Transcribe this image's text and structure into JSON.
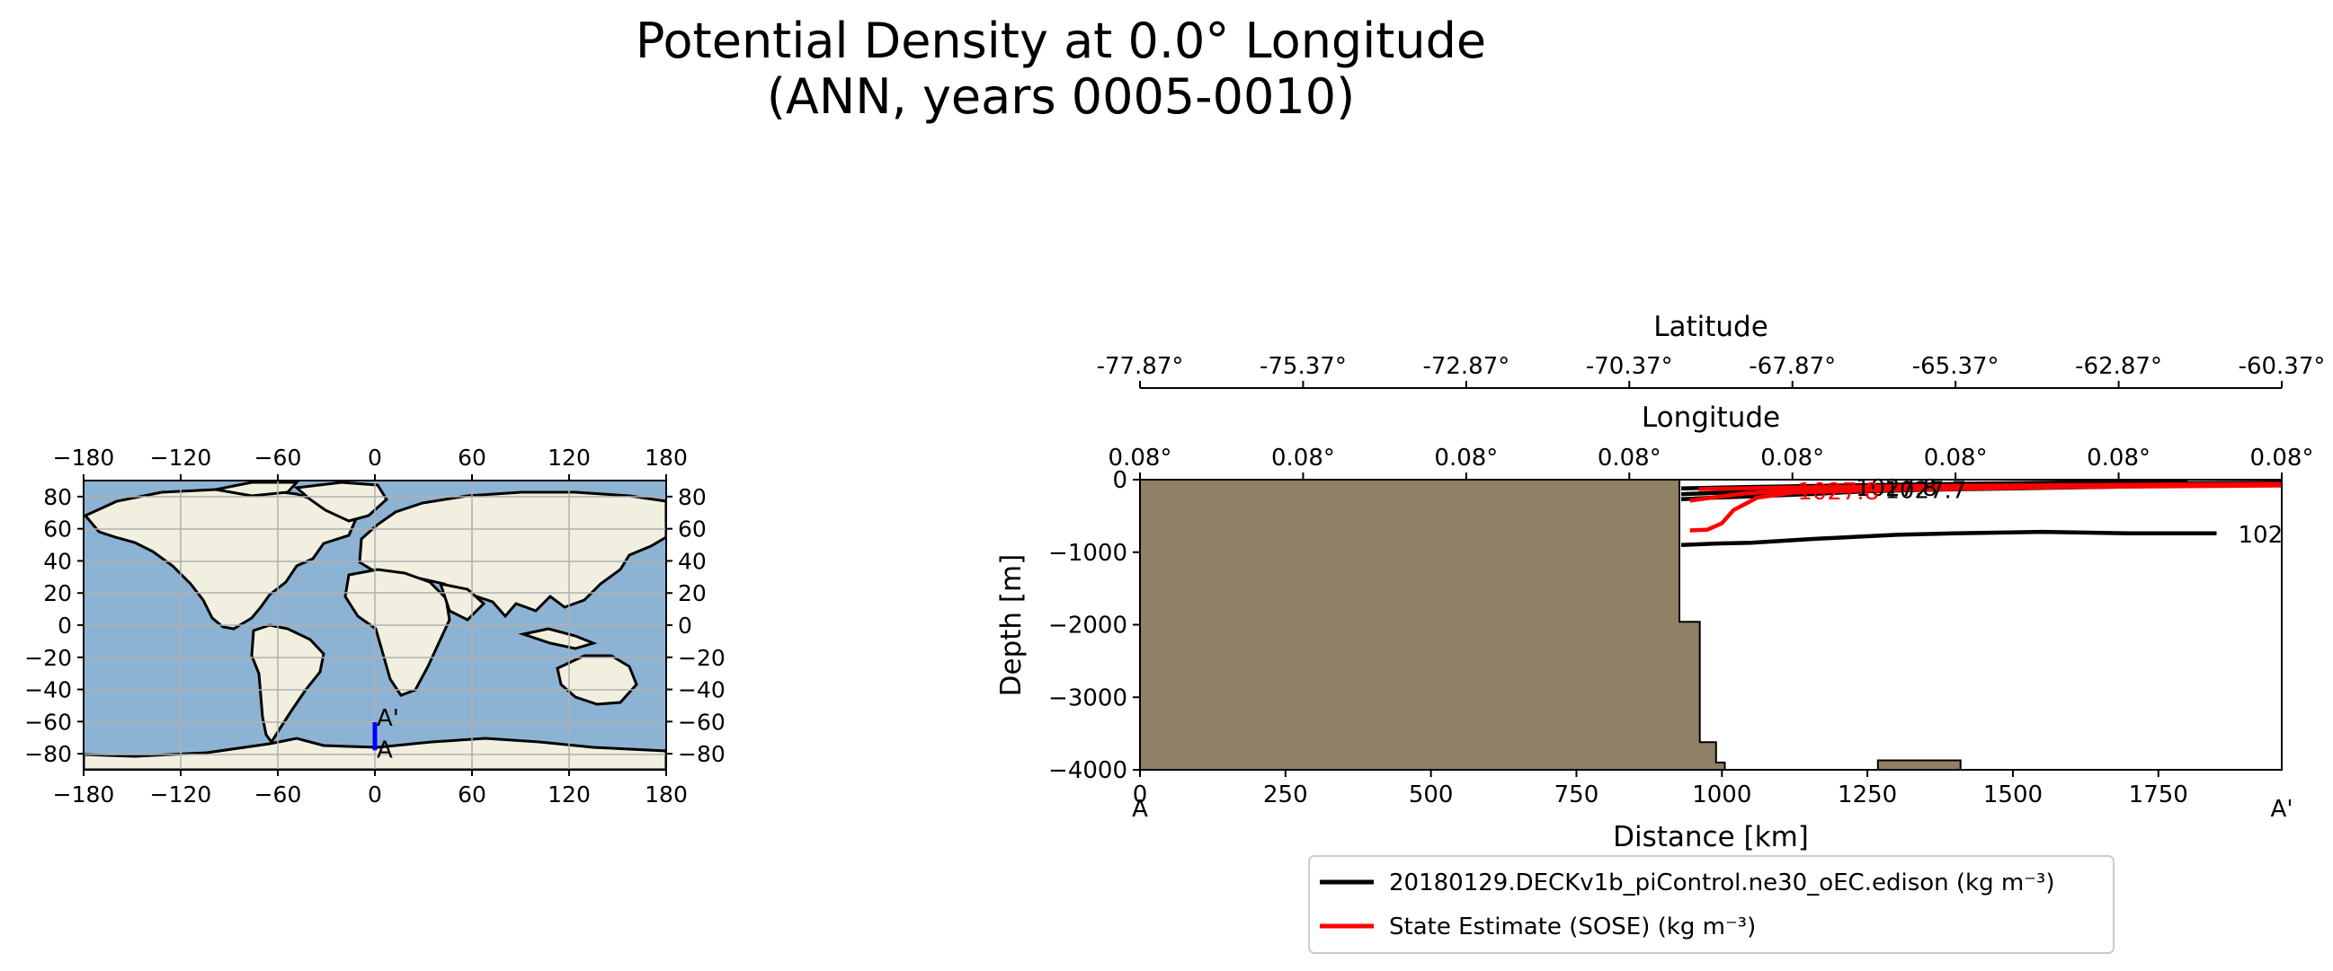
{
  "figure": {
    "title_line1": "Potential Density at 0.0° Longitude",
    "title_line2": "(ANN, years 0005-0010)"
  },
  "map": {
    "lon_ticks": [
      "−180",
      "−120",
      "−60",
      "0",
      "60",
      "120",
      "180"
    ],
    "lat_ticks_left": [
      "80",
      "60",
      "40",
      "20",
      "0",
      "−20",
      "−40",
      "−60",
      "−80"
    ],
    "lat_ticks_right": [
      "80",
      "60",
      "40",
      "20",
      "0",
      "−20",
      "−40",
      "−60",
      "−80"
    ],
    "section_line": {
      "lon": 0,
      "lat_start": -77.87,
      "lat_end": -60.37,
      "color": "#0000ff"
    },
    "start_label": "A",
    "end_label": "A'",
    "ocean_color": "#8db3d4",
    "land_color": "#f1efdf"
  },
  "chart_data": {
    "type": "line",
    "xlabel": "Distance [km]",
    "ylabel": "Depth [m]",
    "xlim": [
      0,
      1962
    ],
    "ylim": [
      -4000,
      0
    ],
    "x_ticks": [
      0,
      250,
      500,
      750,
      1000,
      1250,
      1500,
      1750
    ],
    "y_ticks": [
      0,
      -1000,
      -2000,
      -3000,
      -4000
    ],
    "x_tick_labels": [
      "0",
      "250",
      "500",
      "750",
      "1000",
      "1250",
      "1500",
      "1750"
    ],
    "y_tick_labels": [
      "0",
      "−1000",
      "−2000",
      "−3000",
      "−4000"
    ],
    "section_start_label": "A",
    "section_end_label": "A'",
    "latitude_axis": {
      "label": "Latitude",
      "ticks": [
        "-77.87°",
        "-75.37°",
        "-72.87°",
        "-70.37°",
        "-67.87°",
        "-65.37°",
        "-62.87°",
        "-60.37°"
      ]
    },
    "longitude_axis": {
      "label": "Longitude",
      "ticks": [
        "0.08°",
        "0.08°",
        "0.08°",
        "0.08°",
        "0.08°",
        "0.08°",
        "0.08°",
        "0.08°"
      ]
    },
    "land_color": "#8f8066",
    "bathymetry": [
      {
        "x": 0,
        "y": 0
      },
      {
        "x": 927,
        "y": 0
      },
      {
        "x": 927,
        "y": -1960
      },
      {
        "x": 962,
        "y": -1960
      },
      {
        "x": 962,
        "y": -3620
      },
      {
        "x": 990,
        "y": -3620
      },
      {
        "x": 990,
        "y": -3900
      },
      {
        "x": 1005,
        "y": -3900
      },
      {
        "x": 1005,
        "y": -4000
      },
      {
        "x": 0,
        "y": -4000
      }
    ],
    "seamount": [
      {
        "x": 1268,
        "y": -4000
      },
      {
        "x": 1268,
        "y": -3870
      },
      {
        "x": 1410,
        "y": -3870
      },
      {
        "x": 1410,
        "y": -4000
      }
    ],
    "series": [
      {
        "name": "20180129.DECKv1b_piControl.ne30_oEC.edison (kg m⁻³)",
        "color": "#000000",
        "lines": [
          {
            "label": "102",
            "points": [
              [
                930,
                -900
              ],
              [
                990,
                -880
              ],
              [
                1050,
                -870
              ],
              [
                1150,
                -820
              ],
              [
                1300,
                -760
              ],
              [
                1400,
                -740
              ],
              [
                1550,
                -720
              ],
              [
                1700,
                -740
              ],
              [
                1850,
                -740
              ]
            ]
          },
          {
            "label": "1027.7",
            "points": [
              [
                930,
                -270
              ],
              [
                980,
                -250
              ],
              [
                1050,
                -230
              ],
              [
                1150,
                -200
              ],
              [
                1250,
                -160
              ],
              [
                1350,
                -140
              ],
              [
                1500,
                -120
              ],
              [
                1650,
                -100
              ],
              [
                1800,
                -80
              ],
              [
                1962,
                -70
              ]
            ]
          },
          {
            "label": "1027.8",
            "points": [
              [
                930,
                -200
              ],
              [
                1000,
                -180
              ],
              [
                1100,
                -150
              ],
              [
                1200,
                -130
              ],
              [
                1300,
                -110
              ],
              [
                1450,
                -90
              ],
              [
                1600,
                -70
              ],
              [
                1780,
                -50
              ],
              [
                1962,
                -40
              ]
            ]
          },
          {
            "label": "",
            "points": [
              [
                930,
                -120
              ],
              [
                1050,
                -100
              ],
              [
                1200,
                -80
              ],
              [
                1400,
                -60
              ],
              [
                1600,
                -40
              ],
              [
                1800,
                -30
              ]
            ]
          }
        ]
      },
      {
        "name": "State Estimate (SOSE) (kg m⁻³)",
        "color": "#ff0000",
        "lines": [
          {
            "label": "1027.8",
            "points": [
              [
                945,
                -700
              ],
              [
                975,
                -690
              ],
              [
                1000,
                -600
              ],
              [
                1020,
                -420
              ],
              [
                1060,
                -250
              ],
              [
                1120,
                -180
              ],
              [
                1200,
                -160
              ],
              [
                1300,
                -140
              ],
              [
                1450,
                -120
              ],
              [
                1600,
                -100
              ],
              [
                1800,
                -90
              ],
              [
                1962,
                -80
              ]
            ]
          },
          {
            "label": "",
            "points": [
              [
                945,
                -290
              ],
              [
                990,
                -240
              ],
              [
                1040,
                -190
              ],
              [
                1120,
                -150
              ],
              [
                1250,
                -130
              ],
              [
                1400,
                -110
              ],
              [
                1600,
                -90
              ],
              [
                1800,
                -70
              ],
              [
                1962,
                -60
              ]
            ]
          },
          {
            "label": "",
            "points": [
              [
                960,
                -130
              ],
              [
                1100,
                -110
              ],
              [
                1300,
                -90
              ],
              [
                1500,
                -80
              ],
              [
                1700,
                -70
              ],
              [
                1962,
                -60
              ]
            ]
          }
        ]
      }
    ],
    "legend_placement": "bottom-center"
  }
}
